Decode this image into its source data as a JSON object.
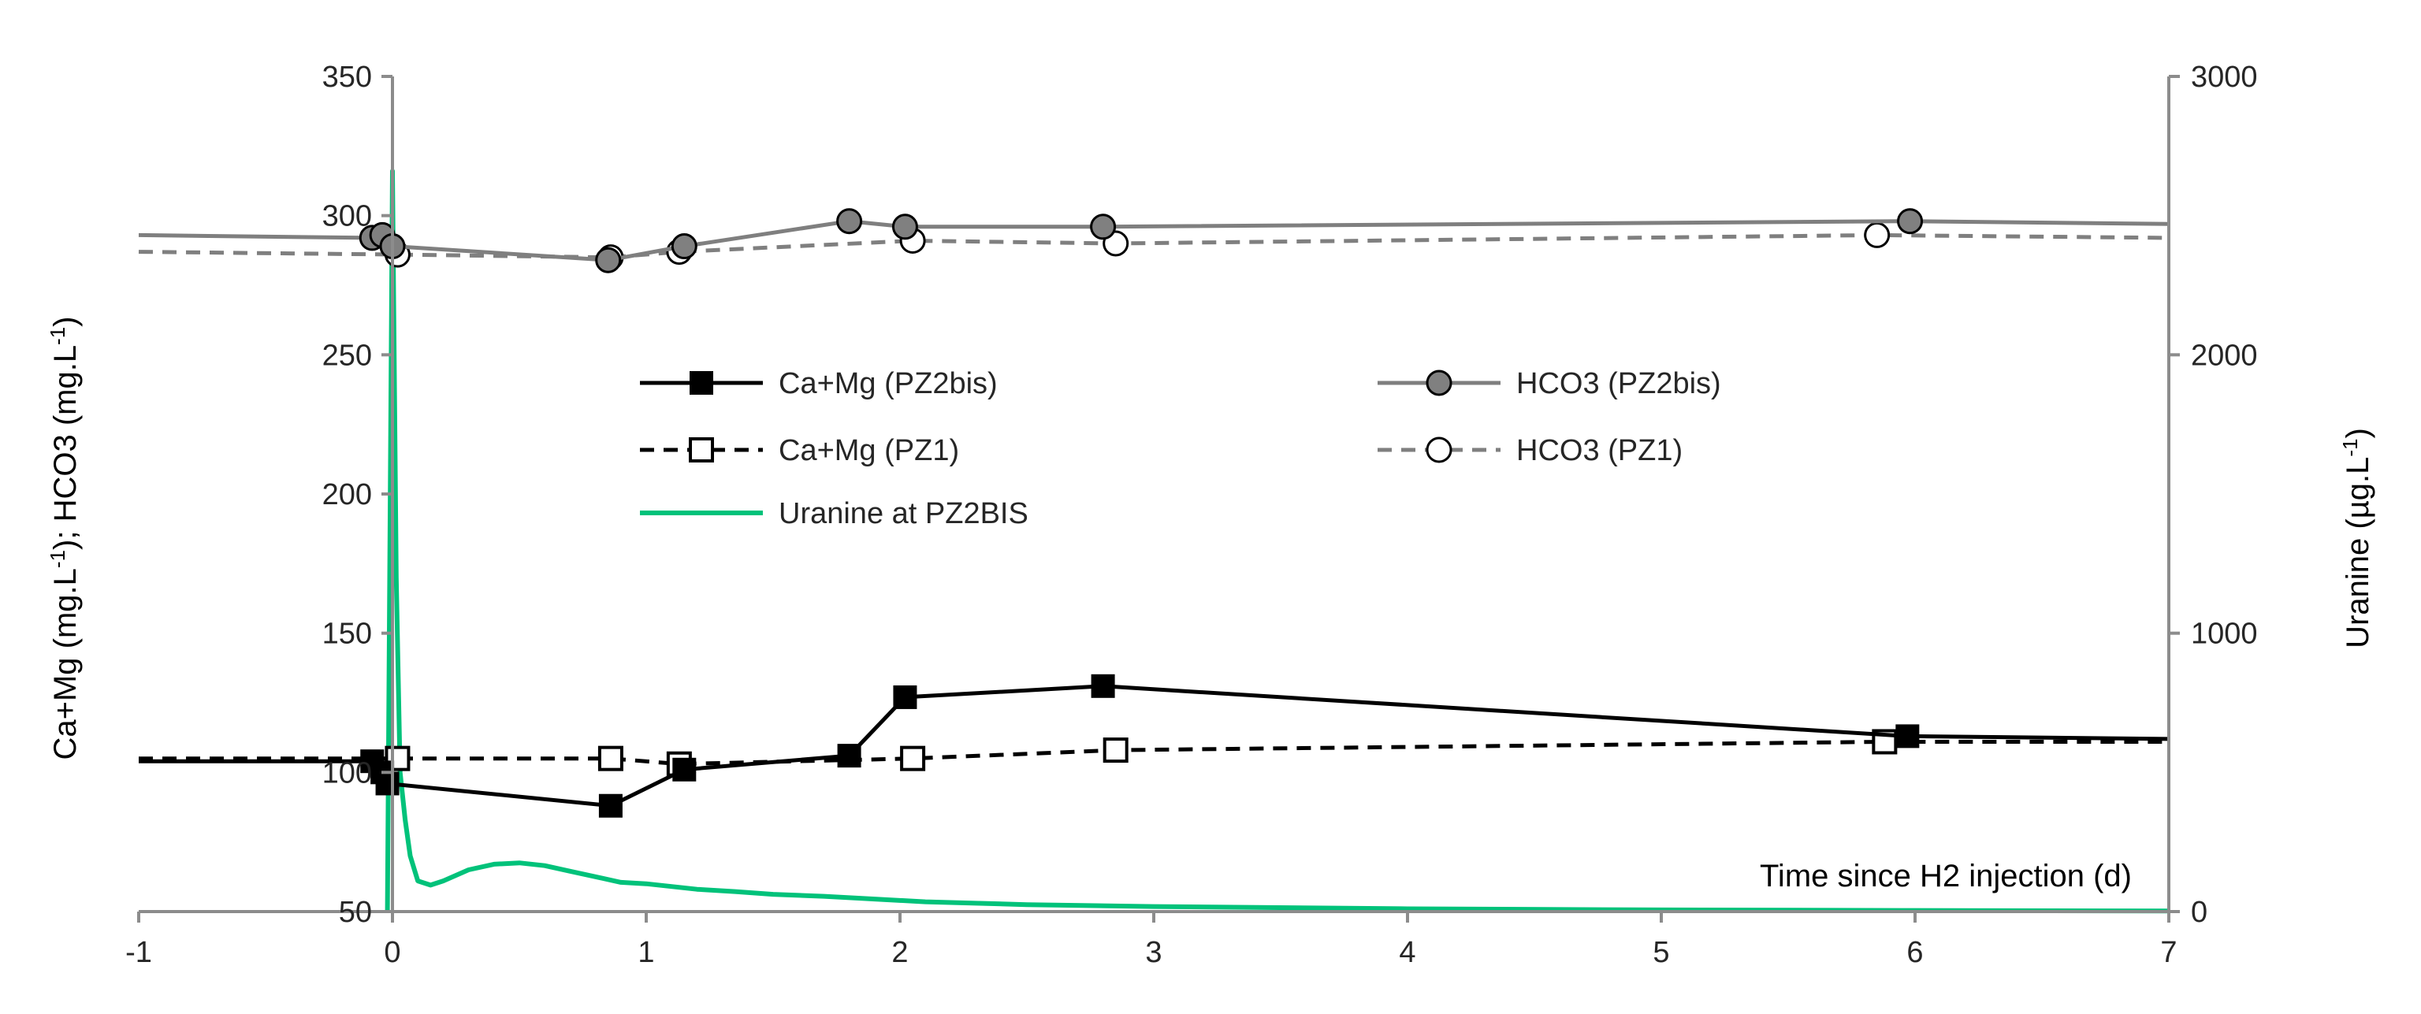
{
  "chart_data": {
    "type": "line",
    "xlabel": "Time since H2 injection (d)",
    "ylabel_left_parts": [
      "Ca+Mg (mg.L",
      "-1",
      "); HCO3 (mg.L",
      "-1",
      ")"
    ],
    "ylabel_right_parts": [
      "Uranine (µg.L",
      "-1",
      ")"
    ],
    "xlim": [
      -1,
      7
    ],
    "ylim_left": [
      50,
      350
    ],
    "ylim_right": [
      0,
      3000
    ],
    "x_ticks": [
      "-1",
      "0",
      "1",
      "2",
      "3",
      "4",
      "5",
      "6",
      "7"
    ],
    "y_ticks_left": [
      "50",
      "100",
      "150",
      "200",
      "250",
      "300",
      "350"
    ],
    "y_ticks_right": [
      "0",
      "1000",
      "2000",
      "3000"
    ],
    "grid": false,
    "legend_position": "center-top",
    "colors": {
      "black": "#000000",
      "gray": "#7f7f7f",
      "gray_marker": "#808080",
      "green": "#00c27a",
      "axis": "#8c8c8c"
    },
    "series": [
      {
        "name": "Ca+Mg (PZ2bis)",
        "axis": "left",
        "style": "solid",
        "color": "#000000",
        "marker": "filled-square",
        "x": [
          -1,
          -0.08,
          -0.04,
          -0.02,
          0.86,
          1.15,
          1.8,
          2.02,
          2.8,
          5.97,
          7
        ],
        "y": [
          104,
          104,
          100,
          96,
          88,
          101,
          106,
          127,
          131,
          113,
          112
        ],
        "marker_mask": [
          0,
          1,
          1,
          1,
          1,
          1,
          1,
          1,
          1,
          1,
          0
        ]
      },
      {
        "name": "Ca+Mg (PZ1)",
        "axis": "left",
        "style": "dashed",
        "color": "#000000",
        "marker": "open-square",
        "x": [
          -1,
          0.02,
          0.86,
          1.13,
          2.05,
          2.85,
          5.88,
          7
        ],
        "y": [
          105,
          105,
          105,
          103,
          105,
          108,
          111,
          111
        ],
        "marker_mask": [
          0,
          1,
          1,
          1,
          1,
          1,
          1,
          0
        ]
      },
      {
        "name": "HCO3 (PZ2bis)",
        "axis": "left",
        "style": "solid",
        "color": "#7f7f7f",
        "marker": "filled-circle",
        "x": [
          -1,
          -0.08,
          -0.04,
          0,
          0.85,
          1.15,
          1.8,
          2.02,
          2.8,
          5.98,
          7
        ],
        "y": [
          293,
          292,
          293,
          289,
          284,
          289,
          298,
          296,
          296,
          298,
          297
        ],
        "marker_mask": [
          0,
          1,
          1,
          1,
          1,
          1,
          1,
          1,
          1,
          1,
          0
        ]
      },
      {
        "name": "HCO3 (PZ1)",
        "axis": "left",
        "style": "dashed",
        "color": "#7f7f7f",
        "marker": "open-circle",
        "x": [
          -1,
          0.02,
          0.86,
          1.13,
          2.05,
          2.85,
          5.85,
          7
        ],
        "y": [
          287,
          286,
          285,
          287,
          291,
          290,
          293,
          292
        ],
        "marker_mask": [
          0,
          1,
          1,
          1,
          1,
          1,
          1,
          0
        ]
      },
      {
        "name": "Uranine at PZ2BIS",
        "axis": "right",
        "style": "solid",
        "color": "#00c27a",
        "marker": "none",
        "x": [
          -0.02,
          0,
          0.015,
          0.03,
          0.05,
          0.07,
          0.1,
          0.15,
          0.2,
          0.3,
          0.4,
          0.5,
          0.6,
          0.7,
          0.8,
          0.9,
          1.0,
          1.1,
          1.2,
          1.35,
          1.5,
          1.7,
          1.9,
          2.1,
          2.5,
          3.0,
          4.0,
          5.0,
          6.0,
          7.0
        ],
        "y": [
          0,
          2660,
          1200,
          500,
          330,
          200,
          110,
          95,
          110,
          150,
          170,
          175,
          165,
          145,
          125,
          105,
          100,
          90,
          80,
          72,
          62,
          55,
          45,
          35,
          25,
          18,
          10,
          6,
          4,
          2
        ]
      }
    ],
    "legend": [
      {
        "label": "Ca+Mg (PZ2bis)",
        "series": 0
      },
      {
        "label": "HCO3 (PZ2bis)",
        "series": 2
      },
      {
        "label": "Ca+Mg (PZ1)",
        "series": 1
      },
      {
        "label": "HCO3 (PZ1)",
        "series": 3
      },
      {
        "label": "Uranine at PZ2BIS",
        "series": 4
      }
    ]
  }
}
